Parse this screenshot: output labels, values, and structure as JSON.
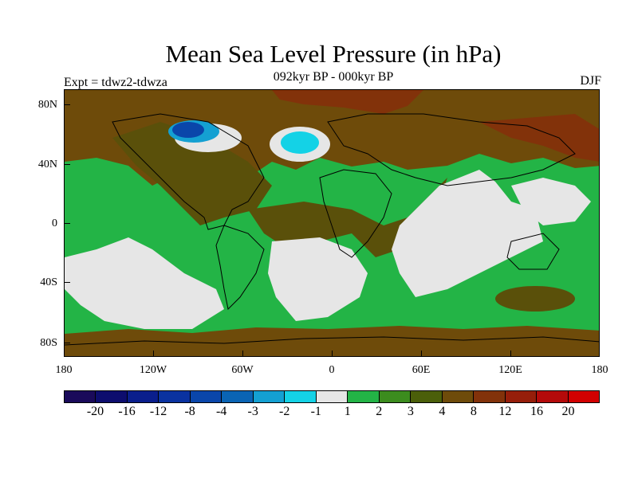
{
  "title": "Mean Sea Level Pressure (in hPa)",
  "subtitle": "092kyr BP - 000kyr BP",
  "experiment": "Expt = tdwz2-tdwza",
  "season": "DJF",
  "map": {
    "lat_labels": [
      "80N",
      "40N",
      "0",
      "40S",
      "80S"
    ],
    "lon_labels": [
      "180",
      "120W",
      "60W",
      "0",
      "60E",
      "120E",
      "180"
    ]
  },
  "colorbar": {
    "labels": [
      "-20",
      "-16",
      "-12",
      "-8",
      "-4",
      "-3",
      "-2",
      "-1",
      "1",
      "2",
      "3",
      "4",
      "8",
      "12",
      "16",
      "20"
    ],
    "colors": [
      "#1a0a5a",
      "#0d0d6e",
      "#0a1e8c",
      "#0a32a0",
      "#0a46aa",
      "#0a64b4",
      "#14a0d2",
      "#14d2e6",
      "#e6e6e6",
      "#23b446",
      "#3c8c1e",
      "#4b5f0a",
      "#6e4b0a",
      "#82320a",
      "#961e0a",
      "#b40a0a",
      "#d20000"
    ]
  },
  "palette": {
    "ocean_green": "#23b446",
    "land_olive": "#5a500a",
    "brown": "#6e4b0a",
    "dark_brown": "#82320a",
    "light_gray": "#e6e6e6",
    "cyan": "#14d2e6",
    "blue": "#0a64b4"
  }
}
